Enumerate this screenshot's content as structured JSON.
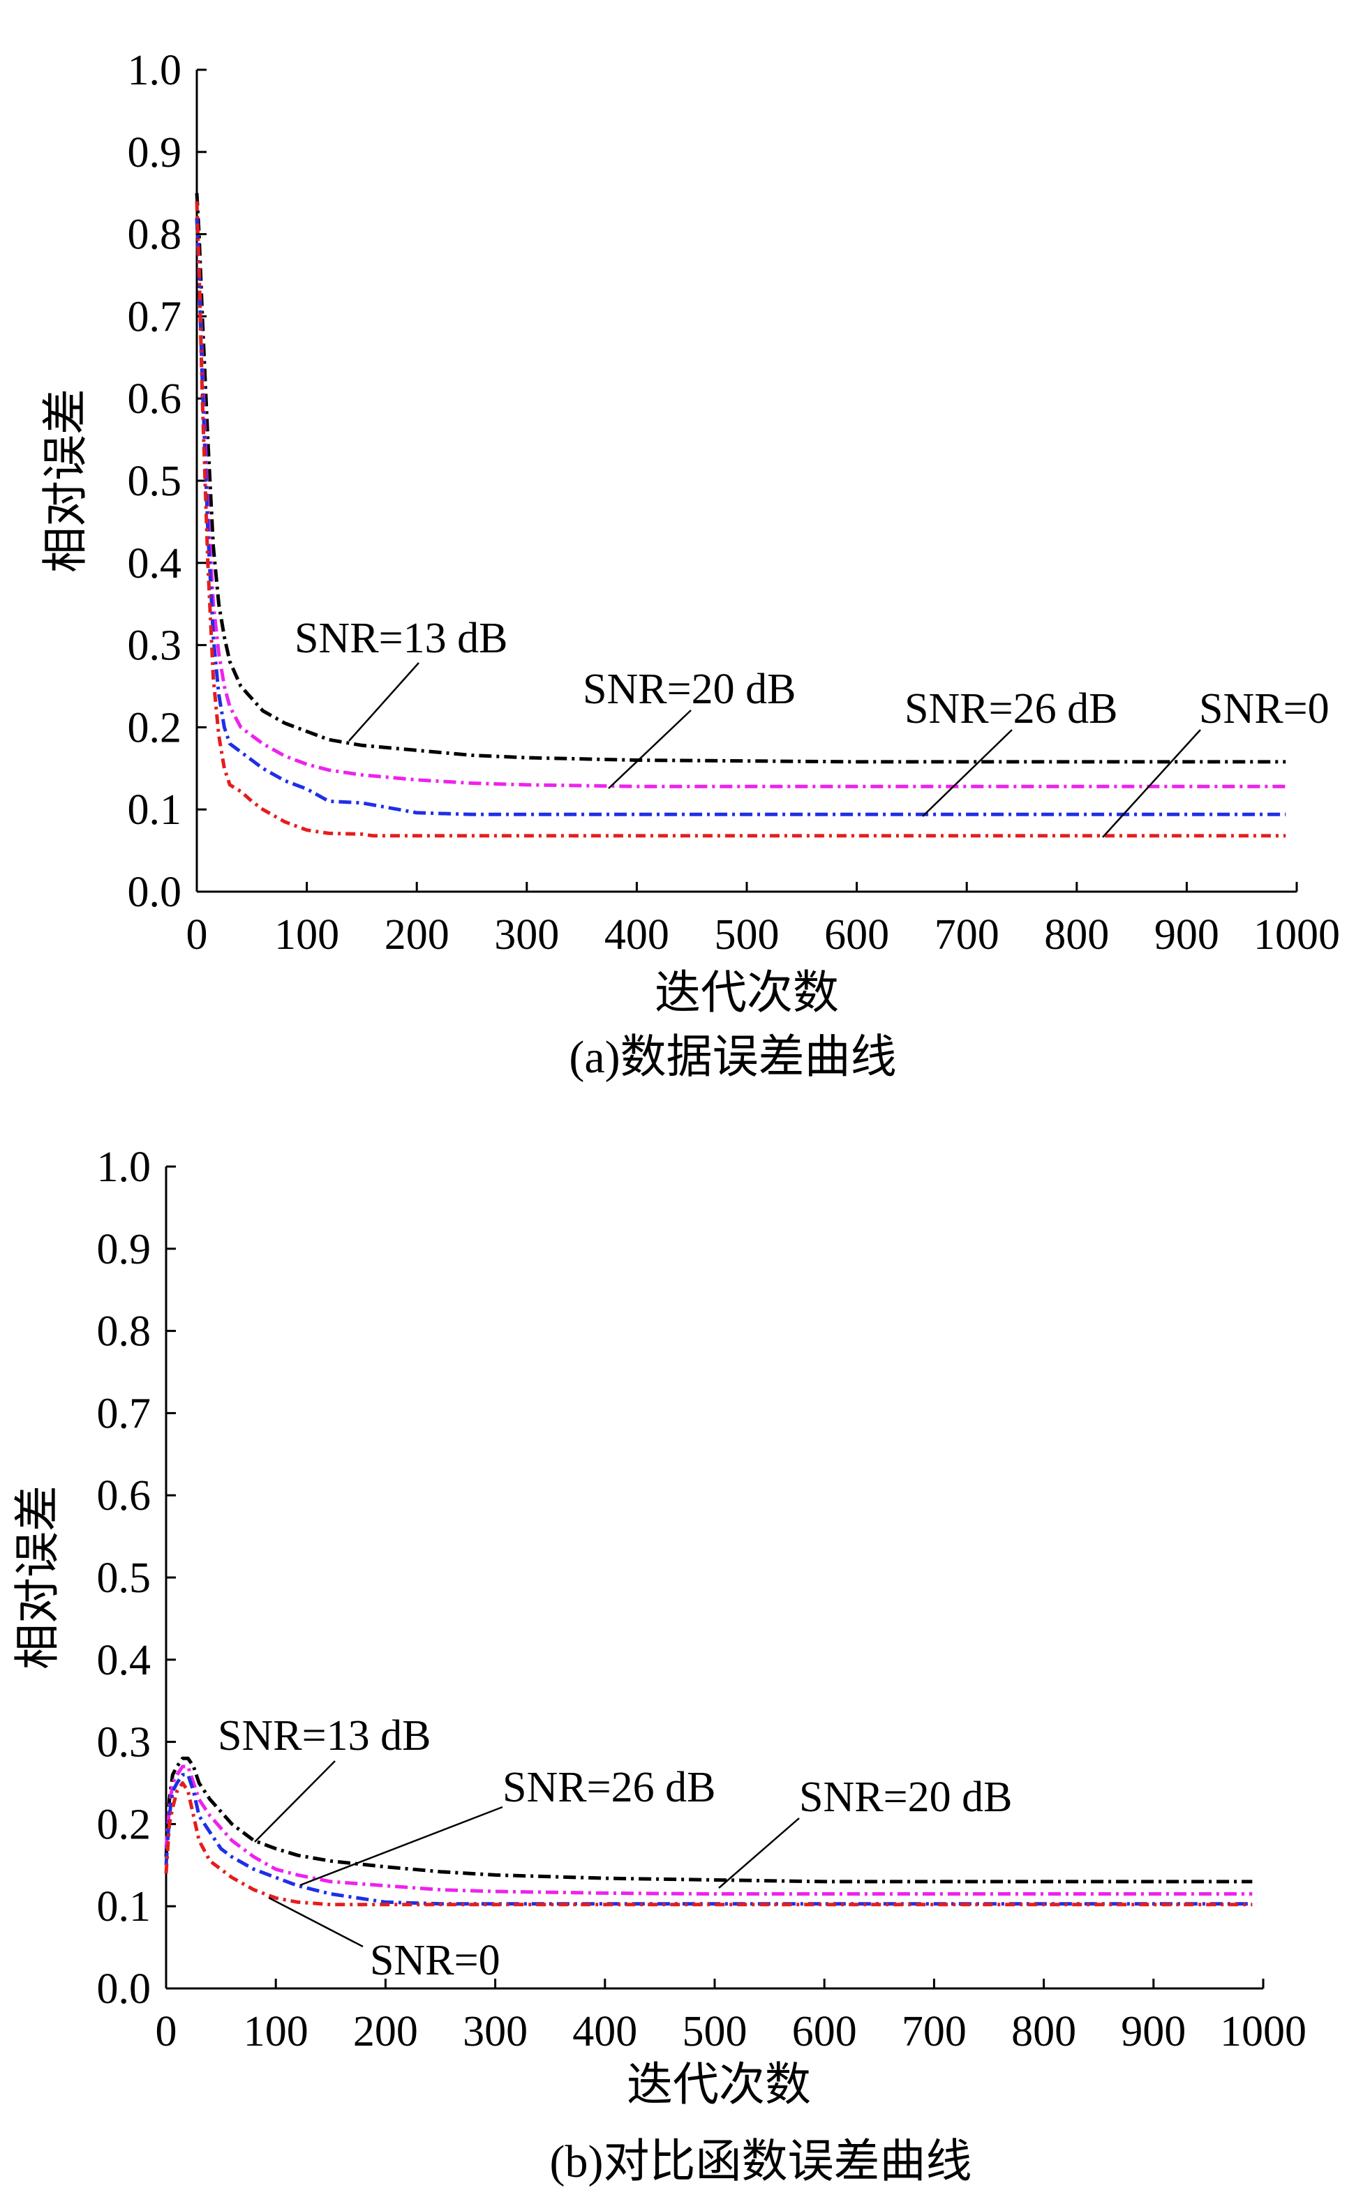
{
  "colors": {
    "snr13": "#000000",
    "snr20": "#ee22ee",
    "snr26": "#1f2fe6",
    "snr0": "#e51d1d",
    "axis": "#000000"
  },
  "chart_data": [
    {
      "type": "line",
      "caption": "(a)数据误差曲线",
      "xlabel": "迭代次数",
      "ylabel": "相对误差",
      "xlim": [
        0,
        1000
      ],
      "ylim": [
        0,
        1.0
      ],
      "xticks": [
        0,
        100,
        200,
        300,
        400,
        500,
        600,
        700,
        800,
        900,
        1000
      ],
      "yticks": [
        0.0,
        0.1,
        0.2,
        0.3,
        0.4,
        0.5,
        0.6,
        0.7,
        0.8,
        0.9,
        1.0
      ],
      "xtick_labels": [
        "0",
        "100",
        "200",
        "300",
        "400",
        "500",
        "600",
        "700",
        "800",
        "900",
        "1000"
      ],
      "ytick_labels": [
        "0.0",
        "0.1",
        "0.2",
        "0.3",
        "0.4",
        "0.5",
        "0.6",
        "0.7",
        "0.8",
        "0.9",
        "1.0"
      ],
      "grid": false,
      "series": [
        {
          "name": "SNR=13 dB",
          "color_key": "snr13",
          "x": [
            0,
            2,
            5,
            10,
            15,
            20,
            25,
            30,
            40,
            50,
            60,
            80,
            100,
            120,
            150,
            200,
            250,
            300,
            400,
            500,
            600,
            700,
            800,
            900,
            990
          ],
          "y": [
            0.85,
            0.8,
            0.7,
            0.55,
            0.42,
            0.35,
            0.31,
            0.28,
            0.25,
            0.235,
            0.22,
            0.205,
            0.195,
            0.185,
            0.178,
            0.172,
            0.166,
            0.163,
            0.16,
            0.159,
            0.158,
            0.158,
            0.158,
            0.158,
            0.158
          ]
        },
        {
          "name": "SNR=20 dB",
          "color_key": "snr20",
          "x": [
            0,
            2,
            5,
            10,
            15,
            20,
            25,
            30,
            40,
            50,
            60,
            80,
            100,
            120,
            150,
            200,
            250,
            300,
            400,
            500,
            600,
            700,
            800,
            900,
            990
          ],
          "y": [
            0.82,
            0.76,
            0.64,
            0.47,
            0.35,
            0.29,
            0.25,
            0.225,
            0.2,
            0.19,
            0.18,
            0.165,
            0.155,
            0.148,
            0.142,
            0.136,
            0.132,
            0.13,
            0.128,
            0.128,
            0.128,
            0.128,
            0.128,
            0.128,
            0.128
          ]
        },
        {
          "name": "SNR=26 dB",
          "color_key": "snr26",
          "x": [
            0,
            2,
            5,
            10,
            15,
            20,
            25,
            30,
            40,
            50,
            60,
            80,
            100,
            120,
            150,
            200,
            250,
            300,
            400,
            500,
            600,
            700,
            800,
            900,
            990
          ],
          "y": [
            0.82,
            0.75,
            0.62,
            0.44,
            0.31,
            0.24,
            0.2,
            0.18,
            0.17,
            0.16,
            0.15,
            0.135,
            0.125,
            0.11,
            0.108,
            0.096,
            0.094,
            0.094,
            0.094,
            0.094,
            0.094,
            0.094,
            0.094,
            0.094,
            0.094
          ]
        },
        {
          "name": "SNR=0",
          "color_key": "snr0",
          "x": [
            0,
            2,
            5,
            10,
            15,
            20,
            25,
            30,
            40,
            50,
            60,
            80,
            100,
            120,
            150,
            160,
            200,
            300,
            400,
            500,
            600,
            700,
            800,
            900,
            990
          ],
          "y": [
            0.84,
            0.76,
            0.6,
            0.4,
            0.26,
            0.19,
            0.15,
            0.13,
            0.122,
            0.11,
            0.1,
            0.085,
            0.075,
            0.071,
            0.07,
            0.068,
            0.068,
            0.068,
            0.068,
            0.068,
            0.068,
            0.068,
            0.068,
            0.068,
            0.068
          ]
        }
      ],
      "annotations": [
        {
          "text": "SNR=13 dB",
          "series": "SNR=13 dB"
        },
        {
          "text": "SNR=20 dB",
          "series": "SNR=20 dB"
        },
        {
          "text": "SNR=26 dB",
          "series": "SNR=26 dB"
        },
        {
          "text": "SNR=0",
          "series": "SNR=0"
        }
      ]
    },
    {
      "type": "line",
      "caption": "(b)对比函数误差曲线",
      "xlabel": "迭代次数",
      "ylabel": "相对误差",
      "xlim": [
        0,
        1000
      ],
      "ylim": [
        0,
        1.0
      ],
      "xticks": [
        0,
        100,
        200,
        300,
        400,
        500,
        600,
        700,
        800,
        900,
        1000
      ],
      "yticks": [
        0.0,
        0.1,
        0.2,
        0.3,
        0.4,
        0.5,
        0.6,
        0.7,
        0.8,
        0.9,
        1.0
      ],
      "xtick_labels": [
        "0",
        "100",
        "200",
        "300",
        "400",
        "500",
        "600",
        "700",
        "800",
        "900",
        "1000"
      ],
      "ytick_labels": [
        "0.0",
        "0.1",
        "0.2",
        "0.3",
        "0.4",
        "0.5",
        "0.6",
        "0.7",
        "0.8",
        "0.9",
        "1.0"
      ],
      "grid": false,
      "series": [
        {
          "name": "SNR=13 dB",
          "color_key": "snr13",
          "x": [
            0,
            3,
            6,
            10,
            15,
            20,
            25,
            30,
            40,
            50,
            60,
            80,
            100,
            120,
            150,
            200,
            250,
            300,
            400,
            500,
            600,
            700,
            800,
            900,
            990
          ],
          "y": [
            0.16,
            0.23,
            0.26,
            0.27,
            0.28,
            0.28,
            0.27,
            0.25,
            0.23,
            0.215,
            0.2,
            0.18,
            0.17,
            0.162,
            0.155,
            0.148,
            0.142,
            0.138,
            0.134,
            0.132,
            0.13,
            0.13,
            0.13,
            0.13,
            0.13
          ]
        },
        {
          "name": "SNR=20 dB",
          "color_key": "snr20",
          "x": [
            0,
            3,
            6,
            10,
            15,
            20,
            25,
            30,
            40,
            50,
            60,
            80,
            100,
            120,
            150,
            200,
            250,
            300,
            400,
            500,
            600,
            700,
            800,
            900,
            990
          ],
          "y": [
            0.17,
            0.22,
            0.25,
            0.26,
            0.27,
            0.27,
            0.25,
            0.23,
            0.21,
            0.195,
            0.18,
            0.16,
            0.145,
            0.138,
            0.13,
            0.125,
            0.12,
            0.118,
            0.116,
            0.115,
            0.115,
            0.115,
            0.115,
            0.115,
            0.115
          ]
        },
        {
          "name": "SNR=26 dB",
          "color_key": "snr26",
          "x": [
            0,
            3,
            6,
            10,
            15,
            20,
            25,
            30,
            40,
            50,
            60,
            80,
            100,
            120,
            150,
            200,
            250,
            300,
            400,
            500,
            600,
            700,
            800,
            900,
            990
          ],
          "y": [
            0.15,
            0.21,
            0.24,
            0.25,
            0.26,
            0.26,
            0.24,
            0.21,
            0.19,
            0.17,
            0.16,
            0.145,
            0.135,
            0.125,
            0.115,
            0.105,
            0.103,
            0.103,
            0.103,
            0.103,
            0.103,
            0.103,
            0.103,
            0.103,
            0.103
          ]
        },
        {
          "name": "SNR=0",
          "color_key": "snr0",
          "x": [
            0,
            3,
            6,
            10,
            15,
            20,
            25,
            30,
            40,
            50,
            60,
            80,
            100,
            120,
            150,
            200,
            250,
            300,
            400,
            500,
            600,
            700,
            800,
            900,
            990
          ],
          "y": [
            0.14,
            0.2,
            0.22,
            0.24,
            0.25,
            0.24,
            0.21,
            0.18,
            0.155,
            0.145,
            0.135,
            0.12,
            0.11,
            0.105,
            0.102,
            0.102,
            0.102,
            0.102,
            0.102,
            0.102,
            0.102,
            0.102,
            0.102,
            0.102,
            0.102
          ]
        }
      ],
      "annotations": [
        {
          "text": "SNR=13 dB",
          "series": "SNR=13 dB"
        },
        {
          "text": "SNR=26 dB",
          "series": "SNR=26 dB"
        },
        {
          "text": "SNR=20 dB",
          "series": "SNR=20 dB"
        },
        {
          "text": "SNR=0",
          "series": "SNR=0"
        }
      ]
    }
  ]
}
